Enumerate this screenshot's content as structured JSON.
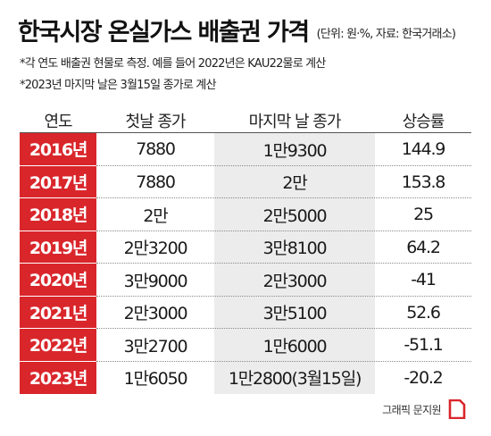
{
  "title": "한국시장 온실가스 배출권 가격",
  "source": "(단위: 원·%, 자료: 한국거래소)",
  "notes": [
    "*각 연도 배출권 현물로 측정. 예를 들어 2022년은 KAU22물로 계산",
    "*2023년 마지막 날은 3월15일 종가로 계산"
  ],
  "headers": {
    "year": "연도",
    "first_close": "첫날 종가",
    "last_close": "마지막 날 종가",
    "change": "상승률"
  },
  "rows": [
    {
      "year": "2016년",
      "first": "7880",
      "last": "1만9300",
      "change": "144.9"
    },
    {
      "year": "2017년",
      "first": "7880",
      "last": "2만",
      "change": "153.8"
    },
    {
      "year": "2018년",
      "first": "2만",
      "last": "2만5000",
      "change": "25"
    },
    {
      "year": "2019년",
      "first": "2만3200",
      "last": "3만8100",
      "change": "64.2"
    },
    {
      "year": "2020년",
      "first": "3만9000",
      "last": "2만3000",
      "change": "-41"
    },
    {
      "year": "2021년",
      "first": "2만3000",
      "last": "3만5100",
      "change": "52.6"
    },
    {
      "year": "2022년",
      "first": "3만2700",
      "last": "1만6000",
      "change": "-51.1"
    },
    {
      "year": "2023년",
      "first": "1만6050",
      "last": "1만2800(3월15일)",
      "change": "-20.2"
    }
  ],
  "credit": "그래픽 문지원",
  "colors": {
    "year_cell": "#d9262b",
    "shaded_column": "#ececec",
    "logo": "#d9262b"
  },
  "logo_icon": "brand-logo-icon"
}
